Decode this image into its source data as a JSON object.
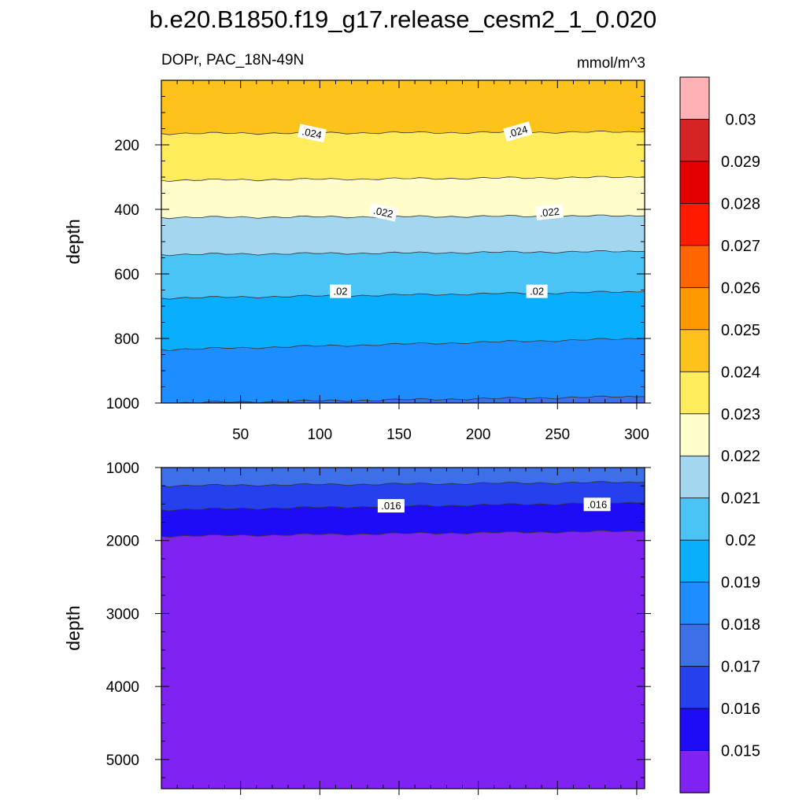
{
  "chart_data": [
    {
      "type": "filled-contour",
      "title": "b.e20.B1850.f19_g17.release_cesm2_1_0.020",
      "subtitle_left": "DOPr, PAC_18N-49N",
      "subtitle_right": "mmol/m^3",
      "ylabel": "depth",
      "xlim": [
        0,
        305
      ],
      "ylim": [
        0,
        1000
      ],
      "y_reversed": true,
      "xticks": [
        50,
        100,
        150,
        200,
        250,
        300
      ],
      "yticks": [
        200,
        400,
        600,
        800,
        1000
      ],
      "contour_label_texts": [
        ".024",
        ".024",
        ".022",
        ".022",
        ".02",
        ".02"
      ],
      "contour_labels": [
        {
          "text": ".024",
          "x": 95,
          "depth": 165,
          "rotate": 12
        },
        {
          "text": ".024",
          "x": 225,
          "depth": 160,
          "rotate": -16
        },
        {
          "text": ".022",
          "x": 140,
          "depth": 410,
          "rotate": 12
        },
        {
          "text": ".022",
          "x": 245,
          "depth": 410,
          "rotate": -6
        },
        {
          "text": ".02",
          "x": 113,
          "depth": 655,
          "rotate": 0
        },
        {
          "text": ".02",
          "x": 237,
          "depth": 655,
          "rotate": 0
        }
      ],
      "bands": [
        {
          "level": 0.024,
          "depth_left": 165,
          "depth_right": 160,
          "color": "#FDC31A"
        },
        {
          "level": 0.023,
          "depth_left": 310,
          "depth_right": 300,
          "color": "#FFEC5C"
        },
        {
          "level": 0.022,
          "depth_left": 425,
          "depth_right": 420,
          "color": "#FFFDCC"
        },
        {
          "level": 0.021,
          "depth_left": 540,
          "depth_right": 530,
          "color": "#A3D7EF"
        },
        {
          "level": 0.02,
          "depth_left": 675,
          "depth_right": 655,
          "color": "#4CC3F7"
        },
        {
          "level": 0.019,
          "depth_left": 835,
          "depth_right": 800,
          "color": "#0AAEFF"
        },
        {
          "level": 0.018,
          "depth_left": 1000,
          "depth_right": 980,
          "color": "#1E8DFF"
        },
        {
          "level": 0.017,
          "depth_left": 1000,
          "depth_right": 1000,
          "color": "#3C6FE8"
        }
      ]
    },
    {
      "type": "filled-contour",
      "ylabel": "depth",
      "xlim": [
        0,
        305
      ],
      "ylim": [
        1000,
        5400
      ],
      "y_reversed": true,
      "yticks": [
        1000,
        2000,
        3000,
        4000,
        5000
      ],
      "contour_label_texts": [
        ".016",
        ".016"
      ],
      "contour_labels": [
        {
          "text": ".016",
          "x": 145,
          "depth": 1530,
          "rotate": 0
        },
        {
          "text": ".016",
          "x": 275,
          "depth": 1510,
          "rotate": 0
        }
      ],
      "bands": [
        {
          "level": 0.017,
          "depth_left": 1250,
          "depth_right": 1200,
          "color": "#3C6FE8"
        },
        {
          "level": 0.016,
          "depth_left": 1580,
          "depth_right": 1480,
          "color": "#2541EE"
        },
        {
          "level": 0.015,
          "depth_left": 1940,
          "depth_right": 1870,
          "color": "#1E0CF7"
        },
        {
          "level": 0.0,
          "depth_left": 5400,
          "depth_right": 5400,
          "color": "#7F22F2"
        }
      ]
    }
  ],
  "colorbar": {
    "labels": [
      "0.03",
      "0.029",
      "0.028",
      "0.027",
      "0.026",
      "0.025",
      "0.024",
      "0.023",
      "0.022",
      "0.021",
      "0.02",
      "0.019",
      "0.018",
      "0.017",
      "0.016",
      "0.015"
    ],
    "colors_top_to_bottom": [
      "#FFB2B6",
      "#D42424",
      "#E50000",
      "#FF1A00",
      "#FF6500",
      "#FF9900",
      "#FDC31A",
      "#FFEC5C",
      "#FFFDCC",
      "#A3D7EF",
      "#4CC3F7",
      "#0AAEFF",
      "#1E8DFF",
      "#3C6FE8",
      "#2541EE",
      "#1E0CF7",
      "#7F22F2"
    ]
  }
}
